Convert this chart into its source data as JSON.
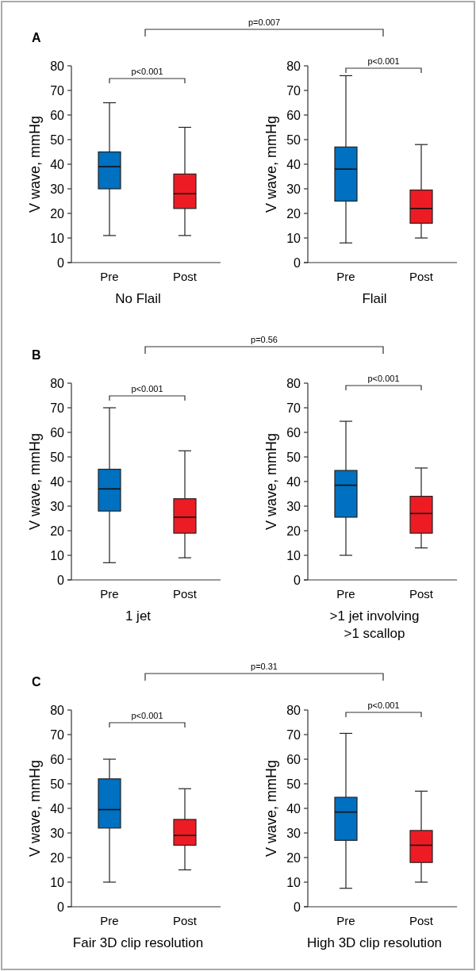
{
  "chart_data": [
    {
      "type": "box",
      "title": "A",
      "categories": [
        "Pre",
        "Post"
      ],
      "colors": [
        "#0070c0",
        "#ed1c24"
      ],
      "xlabel": "No Flail",
      "ylabel": "V wave, mmHg",
      "ylim": [
        0,
        80
      ],
      "yticks": [
        0,
        10,
        20,
        30,
        40,
        50,
        60,
        70,
        80
      ],
      "annotations": [
        "p<0.001",
        "p=0.007"
      ],
      "boxes": [
        {
          "low": 11,
          "q1": 30,
          "median": 39,
          "q3": 45,
          "high": 65
        },
        {
          "low": 11,
          "q1": 22,
          "median": 28,
          "q3": 36,
          "high": 55
        }
      ]
    },
    {
      "type": "box",
      "categories": [
        "Pre",
        "Post"
      ],
      "colors": [
        "#0070c0",
        "#ed1c24"
      ],
      "xlabel": "Flail",
      "ylabel": "V wave, mmHg",
      "ylim": [
        0,
        80
      ],
      "yticks": [
        0,
        10,
        20,
        30,
        40,
        50,
        60,
        70,
        80
      ],
      "annotations": [
        "p<0.001"
      ],
      "boxes": [
        {
          "low": 8,
          "q1": 25,
          "median": 38,
          "q3": 47,
          "high": 76
        },
        {
          "low": 10,
          "q1": 16,
          "median": 22,
          "q3": 29.5,
          "high": 48
        }
      ]
    },
    {
      "type": "box",
      "title": "B",
      "categories": [
        "Pre",
        "Post"
      ],
      "colors": [
        "#0070c0",
        "#ed1c24"
      ],
      "xlabel": "1 jet",
      "ylabel": "V wave, mmHg",
      "ylim": [
        0,
        80
      ],
      "yticks": [
        0,
        10,
        20,
        30,
        40,
        50,
        60,
        70,
        80
      ],
      "annotations": [
        "p<0.001",
        "p=0.56"
      ],
      "boxes": [
        {
          "low": 7,
          "q1": 28,
          "median": 37,
          "q3": 45,
          "high": 70
        },
        {
          "low": 9,
          "q1": 19,
          "median": 25.5,
          "q3": 33,
          "high": 52.5
        }
      ]
    },
    {
      "type": "box",
      "categories": [
        "Pre",
        "Post"
      ],
      "colors": [
        "#0070c0",
        "#ed1c24"
      ],
      "xlabel": ">1 jet involving\n>1 scallop",
      "ylabel": "V wave, mmHg",
      "ylim": [
        0,
        80
      ],
      "yticks": [
        0,
        10,
        20,
        30,
        40,
        50,
        60,
        70,
        80
      ],
      "annotations": [
        "p<0.001"
      ],
      "boxes": [
        {
          "low": 10,
          "q1": 25.5,
          "median": 38.5,
          "q3": 44.5,
          "high": 64.5
        },
        {
          "low": 13,
          "q1": 19,
          "median": 27,
          "q3": 34,
          "high": 45.5
        }
      ]
    },
    {
      "type": "box",
      "title": "C",
      "categories": [
        "Pre",
        "Post"
      ],
      "colors": [
        "#0070c0",
        "#ed1c24"
      ],
      "xlabel": "Fair 3D clip resolution",
      "ylabel": "V wave, mmHg",
      "ylim": [
        0,
        80
      ],
      "yticks": [
        0,
        10,
        20,
        30,
        40,
        50,
        60,
        70,
        80
      ],
      "annotations": [
        "p<0.001",
        "p=0.31"
      ],
      "boxes": [
        {
          "low": 10,
          "q1": 32,
          "median": 39.5,
          "q3": 52,
          "high": 60
        },
        {
          "low": 15,
          "q1": 25,
          "median": 29,
          "q3": 35.5,
          "high": 48
        }
      ]
    },
    {
      "type": "box",
      "categories": [
        "Pre",
        "Post"
      ],
      "colors": [
        "#0070c0",
        "#ed1c24"
      ],
      "xlabel": "High 3D clip resolution",
      "ylabel": "V wave, mmHg",
      "ylim": [
        0,
        80
      ],
      "yticks": [
        0,
        10,
        20,
        30,
        40,
        50,
        60,
        70,
        80
      ],
      "annotations": [
        "p<0.001"
      ],
      "boxes": [
        {
          "low": 7.5,
          "q1": 27,
          "median": 38.5,
          "q3": 44.5,
          "high": 70.5
        },
        {
          "low": 10,
          "q1": 18,
          "median": 25,
          "q3": 31,
          "high": 47
        }
      ]
    }
  ]
}
